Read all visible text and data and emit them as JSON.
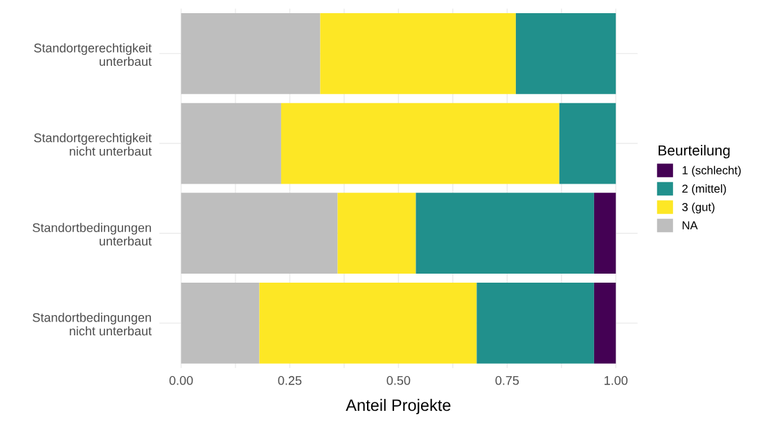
{
  "chart_data": {
    "type": "bar",
    "orientation": "horizontal",
    "stacked": true,
    "xlabel": "Anteil Projekte",
    "legend_title": "Beurteilung",
    "legend": "right",
    "grid": true,
    "categories": [
      "Standortgerechtigkeit\nunterbaut",
      "Standortgerechtigkeit\nnicht unterbaut",
      "Standortbedingungen\nunterbaut",
      "Standortbedingungen\nnicht unterbaut"
    ],
    "series": [
      {
        "name": "NA",
        "color": "#bebebe",
        "values": [
          0.32,
          0.23,
          0.36,
          0.18
        ]
      },
      {
        "name": "3 (gut)",
        "color": "#fde725",
        "values": [
          0.45,
          0.64,
          0.18,
          0.5
        ]
      },
      {
        "name": "2 (mittel)",
        "color": "#21908c",
        "values": [
          0.23,
          0.13,
          0.41,
          0.27
        ]
      },
      {
        "name": "1 (schlecht)",
        "color": "#440154",
        "values": [
          null,
          null,
          0.05,
          0.05
        ]
      }
    ],
    "xlim": [
      -0.05,
      1.05
    ],
    "xticks": [
      {
        "value": 0,
        "label": "0.00"
      },
      {
        "value": 0.125,
        "label": null
      },
      {
        "value": 0.25,
        "label": "0.25"
      },
      {
        "value": 0.375,
        "label": null
      },
      {
        "value": 0.5,
        "label": "0.50"
      },
      {
        "value": 0.625,
        "label": null
      },
      {
        "value": 0.75,
        "label": "0.75"
      },
      {
        "value": 0.875,
        "label": null
      },
      {
        "value": 1,
        "label": "1.00"
      }
    ]
  }
}
